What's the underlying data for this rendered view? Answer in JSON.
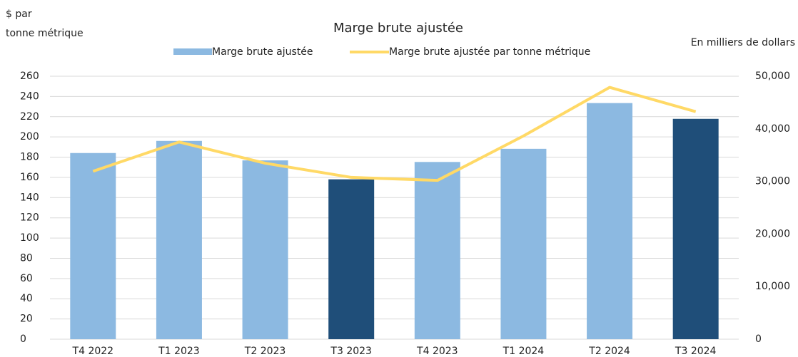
{
  "chart_data": {
    "type": "bar_line",
    "title": "Marge brute ajustée",
    "ylabel": [
      "$ par",
      "tonne métrique"
    ],
    "y2label": "En milliers de dollars",
    "categories": [
      "T4 2022",
      "T1 2023",
      "T2 2023",
      "T3 2023",
      "T4 2023",
      "T1 2024",
      "T2 2024",
      "T3 2024"
    ],
    "series": [
      {
        "name": "Marge brute ajustée",
        "type": "bar",
        "axis": "y2",
        "colors": [
          "#8cb9e1",
          "#8cb9e1",
          "#8cb9e1",
          "#1f4e79",
          "#8cb9e1",
          "#8cb9e1",
          "#8cb9e1",
          "#1f4e79"
        ],
        "values": [
          35400,
          37700,
          34000,
          30400,
          33700,
          36200,
          44900,
          41900
        ]
      },
      {
        "name": "Marge brute ajustée par tonne métrique",
        "type": "line",
        "axis": "y",
        "color": "#ffd966",
        "values": [
          166,
          195,
          174,
          160,
          157,
          201,
          249,
          225
        ]
      }
    ],
    "ylim": [
      0,
      260
    ],
    "yticks": [
      0,
      20,
      40,
      60,
      80,
      100,
      120,
      140,
      160,
      180,
      200,
      220,
      240,
      260
    ],
    "y2lim": [
      0,
      50000
    ],
    "y2ticks": [
      0,
      {
        "value": 10000,
        "label": "10,000"
      },
      {
        "value": 20000,
        "label": "20,000"
      },
      {
        "value": 30000,
        "label": "30,000"
      },
      {
        "value": 40000,
        "label": "40,000"
      },
      {
        "value": 50000,
        "label": "50,000"
      }
    ],
    "grid": true
  }
}
